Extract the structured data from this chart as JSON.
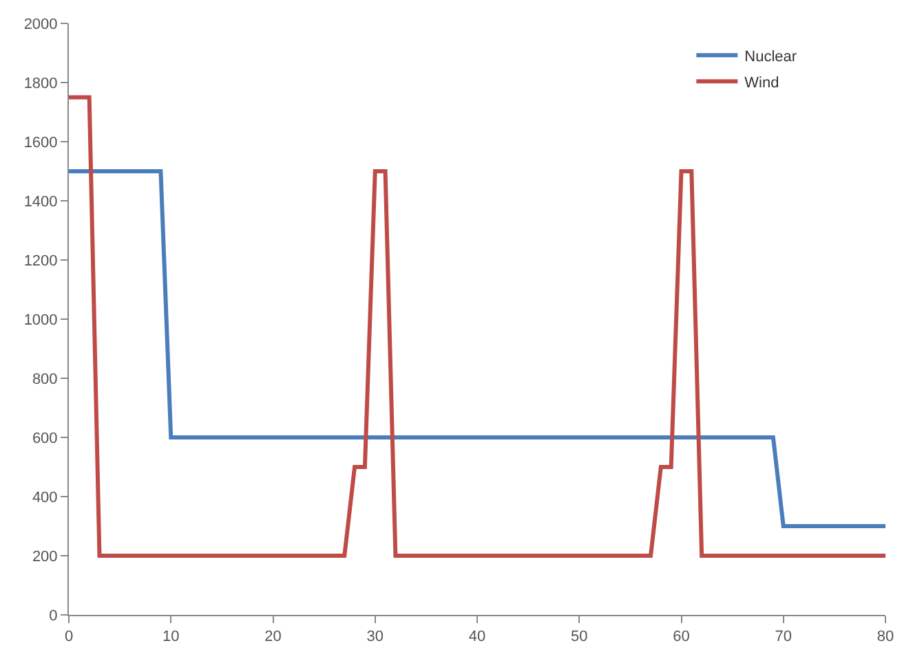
{
  "chart_data": {
    "type": "line",
    "xlim": [
      0,
      80
    ],
    "xticks": [
      0,
      10,
      20,
      30,
      40,
      50,
      60,
      70,
      80
    ],
    "ylim": [
      0,
      2000
    ],
    "yticks": [
      0,
      200,
      400,
      600,
      800,
      1000,
      1200,
      1400,
      1600,
      1800,
      2000
    ],
    "legend": "top right",
    "marker": "none",
    "line_style": "solid",
    "series": [
      {
        "name": "Nuclear",
        "color": "#4a7ebb",
        "x": [
          0,
          9,
          10,
          69,
          70,
          80
        ],
        "values": [
          1500,
          1500,
          600,
          600,
          300,
          300
        ]
      },
      {
        "name": "Wind",
        "color": "#be4b48",
        "x": [
          0,
          2,
          3,
          27,
          28,
          29,
          30,
          31,
          32,
          57,
          58,
          59,
          60,
          61,
          62,
          80
        ],
        "values": [
          1750,
          1750,
          200,
          200,
          500,
          500,
          1500,
          1500,
          200,
          200,
          500,
          500,
          1500,
          1500,
          200,
          200
        ]
      }
    ]
  }
}
